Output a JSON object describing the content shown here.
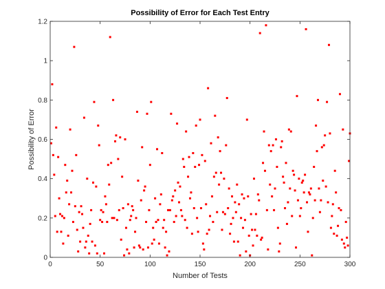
{
  "chart_data": {
    "type": "scatter",
    "title": "Possibility of Error for Each Test Entry",
    "xlabel": "Number of Tests",
    "ylabel": "Possibility of Error",
    "xlim": [
      0,
      300
    ],
    "ylim": [
      0,
      1.2
    ],
    "xticks": [
      "0",
      "50",
      "100",
      "150",
      "200",
      "250",
      "300"
    ],
    "yticks": [
      "0",
      "0.2",
      "0.4",
      "0.6",
      "0.8",
      "1",
      "1.2"
    ],
    "grid": false,
    "marker_color": "#ff0000",
    "points": [
      [
        1,
        0.58
      ],
      [
        2,
        0.88
      ],
      [
        3,
        0.52
      ],
      [
        4,
        0.42
      ],
      [
        5,
        0.21
      ],
      [
        6,
        0.66
      ],
      [
        7,
        0.13
      ],
      [
        8,
        0.51
      ],
      [
        9,
        0.3
      ],
      [
        10,
        0.22
      ],
      [
        11,
        0.13
      ],
      [
        12,
        0.21
      ],
      [
        13,
        0.07
      ],
      [
        14,
        0.2
      ],
      [
        15,
        0.47
      ],
      [
        16,
        0.33
      ],
      [
        17,
        0.39
      ],
      [
        18,
        0.11
      ],
      [
        19,
        0.27
      ],
      [
        20,
        0.65
      ],
      [
        21,
        0.33
      ],
      [
        22,
        0.44
      ],
      [
        23,
        0.18
      ],
      [
        24,
        1.07
      ],
      [
        25,
        0.26
      ],
      [
        26,
        0.52
      ],
      [
        27,
        0.14
      ],
      [
        28,
        0.03
      ],
      [
        29,
        0.23
      ],
      [
        30,
        0.08
      ],
      [
        31,
        0.26
      ],
      [
        32,
        0.22
      ],
      [
        33,
        0.15
      ],
      [
        34,
        0.71
      ],
      [
        35,
        0.05
      ],
      [
        36,
        0.08
      ],
      [
        37,
        0.4
      ],
      [
        38,
        0.11
      ],
      [
        39,
        0.02
      ],
      [
        40,
        0.17
      ],
      [
        41,
        0.24
      ],
      [
        42,
        0.08
      ],
      [
        43,
        0.38
      ],
      [
        44,
        0.79
      ],
      [
        45,
        0.06
      ],
      [
        46,
        0.36
      ],
      [
        47,
        0.02
      ],
      [
        48,
        0.67
      ],
      [
        49,
        0.57
      ],
      [
        50,
        0.19
      ],
      [
        51,
        0.24
      ],
      [
        52,
        0.18
      ],
      [
        53,
        0.23
      ],
      [
        54,
        0.02
      ],
      [
        55,
        0.31
      ],
      [
        56,
        0.27
      ],
      [
        57,
        0.18
      ],
      [
        58,
        0.47
      ],
      [
        59,
        0.37
      ],
      [
        60,
        1.12
      ],
      [
        61,
        0.48
      ],
      [
        62,
        0.2
      ],
      [
        63,
        0.8
      ],
      [
        64,
        0.2
      ],
      [
        65,
        0.59
      ],
      [
        66,
        0.62
      ],
      [
        67,
        0.19
      ],
      [
        68,
        0.5
      ],
      [
        69,
        0.24
      ],
      [
        70,
        0.61
      ],
      [
        71,
        0.09
      ],
      [
        72,
        0.41
      ],
      [
        73,
        0.25
      ],
      [
        74,
        0.01
      ],
      [
        75,
        0.6
      ],
      [
        76,
        0.15
      ],
      [
        77,
        0.04
      ],
      [
        78,
        0.27
      ],
      [
        79,
        0.02
      ],
      [
        80,
        0.19
      ],
      [
        81,
        0.21
      ],
      [
        82,
        0.26
      ],
      [
        83,
        0.24
      ],
      [
        84,
        0.05
      ],
      [
        85,
        0.13
      ],
      [
        86,
        0.2
      ],
      [
        87,
        0.74
      ],
      [
        88,
        0.39
      ],
      [
        89,
        0.06
      ],
      [
        90,
        0.05
      ],
      [
        91,
        0.29
      ],
      [
        92,
        0.56
      ],
      [
        93,
        0.04
      ],
      [
        94,
        0.34
      ],
      [
        95,
        0.36
      ],
      [
        96,
        0.18
      ],
      [
        97,
        0.73
      ],
      [
        98,
        0.05
      ],
      [
        99,
        0.24
      ],
      [
        100,
        0.47
      ],
      [
        101,
        0.79
      ],
      [
        102,
        0.07
      ],
      [
        103,
        0.15
      ],
      [
        104,
        0.09
      ],
      [
        105,
        0.3
      ],
      [
        106,
        0.18
      ],
      [
        107,
        0.55
      ],
      [
        108,
        0.19
      ],
      [
        109,
        0.07
      ],
      [
        110,
        0.27
      ],
      [
        111,
        0.32
      ],
      [
        112,
        0.53
      ],
      [
        113,
        0.15
      ],
      [
        114,
        0.19
      ],
      [
        115,
        0.05
      ],
      [
        116,
        0.13
      ],
      [
        117,
        0.01
      ],
      [
        118,
        0.24
      ],
      [
        119,
        0.03
      ],
      [
        120,
        0.24
      ],
      [
        121,
        0.73
      ],
      [
        122,
        0.29
      ],
      [
        123,
        0.31
      ],
      [
        124,
        0.18
      ],
      [
        125,
        0.34
      ],
      [
        126,
        0.21
      ],
      [
        127,
        0.68
      ],
      [
        128,
        0.38
      ],
      [
        129,
        0.28
      ],
      [
        130,
        0.36
      ],
      [
        131,
        0.24
      ],
      [
        132,
        0.21
      ],
      [
        133,
        0.5
      ],
      [
        134,
        0.46
      ],
      [
        135,
        0.19
      ],
      [
        136,
        0.64
      ],
      [
        137,
        0.15
      ],
      [
        138,
        0.41
      ],
      [
        139,
        0.51
      ],
      [
        140,
        0.3
      ],
      [
        141,
        0.33
      ],
      [
        142,
        0.12
      ],
      [
        143,
        0.53
      ],
      [
        144,
        0.25
      ],
      [
        145,
        0.46
      ],
      [
        146,
        0.67
      ],
      [
        147,
        0.2
      ],
      [
        148,
        0.13
      ],
      [
        149,
        0.47
      ],
      [
        150,
        0.7
      ],
      [
        151,
        0.25
      ],
      [
        152,
        0.52
      ],
      [
        153,
        0.07
      ],
      [
        154,
        0.04
      ],
      [
        155,
        0.49
      ],
      [
        156,
        0.27
      ],
      [
        157,
        0.12
      ],
      [
        158,
        0.86
      ],
      [
        159,
        0.14
      ],
      [
        160,
        0.21
      ],
      [
        161,
        0.58
      ],
      [
        162,
        0.31
      ],
      [
        163,
        0.18
      ],
      [
        164,
        0.41
      ],
      [
        165,
        0.72
      ],
      [
        166,
        0.43
      ],
      [
        167,
        0.23
      ],
      [
        168,
        0.61
      ],
      [
        169,
        0.37
      ],
      [
        170,
        0.54
      ],
      [
        171,
        0.43
      ],
      [
        172,
        0.14
      ],
      [
        173,
        0.23
      ],
      [
        174,
        0.4
      ],
      [
        175,
        0.22
      ],
      [
        176,
        0.57
      ],
      [
        177,
        0.81
      ],
      [
        178,
        0.25
      ],
      [
        179,
        0.35
      ],
      [
        180,
        0.12
      ],
      [
        181,
        0.17
      ],
      [
        182,
        0.31
      ],
      [
        183,
        0.2
      ],
      [
        184,
        0.08
      ],
      [
        185,
        0.28
      ],
      [
        186,
        0.23
      ],
      [
        187,
        0.37
      ],
      [
        188,
        0.08
      ],
      [
        189,
        0.27
      ],
      [
        190,
        0.01
      ],
      [
        191,
        0.2
      ],
      [
        192,
        0.32
      ],
      [
        193,
        0.15
      ],
      [
        194,
        0.3
      ],
      [
        195,
        0.19
      ],
      [
        196,
        0.03
      ],
      [
        197,
        0.7
      ],
      [
        198,
        0.31
      ],
      [
        199,
        0.11
      ],
      [
        200,
        0.01
      ],
      [
        201,
        0.22
      ],
      [
        202,
        0.14
      ],
      [
        203,
        0.06
      ],
      [
        204,
        0.4
      ],
      [
        205,
        0.14
      ],
      [
        206,
        0.22
      ],
      [
        207,
        0.11
      ],
      [
        208,
        0.32
      ],
      [
        209,
        0.29
      ],
      [
        210,
        1.14
      ],
      [
        211,
        0.09
      ],
      [
        212,
        0.1
      ],
      [
        213,
        0.48
      ],
      [
        214,
        0.64
      ],
      [
        215,
        0.44
      ],
      [
        216,
        1.18
      ],
      [
        217,
        0.24
      ],
      [
        218,
        0.04
      ],
      [
        219,
        0.57
      ],
      [
        220,
        0.37
      ],
      [
        221,
        0.54
      ],
      [
        222,
        0.31
      ],
      [
        223,
        0.57
      ],
      [
        224,
        0.24
      ],
      [
        225,
        0.35
      ],
      [
        226,
        0.6
      ],
      [
        227,
        0.46
      ],
      [
        228,
        0.15
      ],
      [
        229,
        0.03
      ],
      [
        230,
        0.07
      ],
      [
        231,
        0.56
      ],
      [
        232,
        0.59
      ],
      [
        233,
        0.41
      ],
      [
        234,
        0.38
      ],
      [
        235,
        0.25
      ],
      [
        236,
        0.48
      ],
      [
        237,
        0.17
      ],
      [
        238,
        0.28
      ],
      [
        239,
        0.65
      ],
      [
        240,
        0.35
      ],
      [
        241,
        0.64
      ],
      [
        242,
        0.21
      ],
      [
        243,
        0.44
      ],
      [
        244,
        0.42
      ],
      [
        245,
        0.34
      ],
      [
        246,
        0.05
      ],
      [
        247,
        0.82
      ],
      [
        248,
        0.29
      ],
      [
        249,
        0.4
      ],
      [
        250,
        0.21
      ],
      [
        251,
        0.25
      ],
      [
        252,
        0.38
      ],
      [
        253,
        0.39
      ],
      [
        254,
        0.33
      ],
      [
        255,
        0.42
      ],
      [
        256,
        1.16
      ],
      [
        257,
        0.28
      ],
      [
        258,
        0.13
      ],
      [
        259,
        0.33
      ],
      [
        260,
        0.32
      ],
      [
        261,
        0.35
      ],
      [
        262,
        0.01
      ],
      [
        263,
        0.2
      ],
      [
        264,
        0.46
      ],
      [
        265,
        0.29
      ],
      [
        266,
        0.67
      ],
      [
        267,
        0.54
      ],
      [
        268,
        0.8
      ],
      [
        269,
        0.35
      ],
      [
        270,
        0.23
      ],
      [
        271,
        0.29
      ],
      [
        272,
        0.56
      ],
      [
        273,
        0.39
      ],
      [
        274,
        0.57
      ],
      [
        275,
        0.62
      ],
      [
        276,
        0.36
      ],
      [
        277,
        0.79
      ],
      [
        278,
        0.28
      ],
      [
        279,
        1.08
      ],
      [
        280,
        0.63
      ],
      [
        281,
        0.15
      ],
      [
        282,
        0.21
      ],
      [
        283,
        0.27
      ],
      [
        284,
        0.12
      ],
      [
        285,
        0.44
      ],
      [
        286,
        0.33
      ],
      [
        287,
        0.11
      ],
      [
        288,
        0.16
      ],
      [
        289,
        0.25
      ],
      [
        290,
        0.83
      ],
      [
        291,
        0.24
      ],
      [
        292,
        0.09
      ],
      [
        293,
        0.65
      ],
      [
        294,
        0.07
      ],
      [
        295,
        0.05
      ],
      [
        296,
        0.18
      ],
      [
        297,
        0.1
      ],
      [
        298,
        0.06
      ],
      [
        299,
        0.49
      ],
      [
        300,
        0.63
      ]
    ]
  }
}
